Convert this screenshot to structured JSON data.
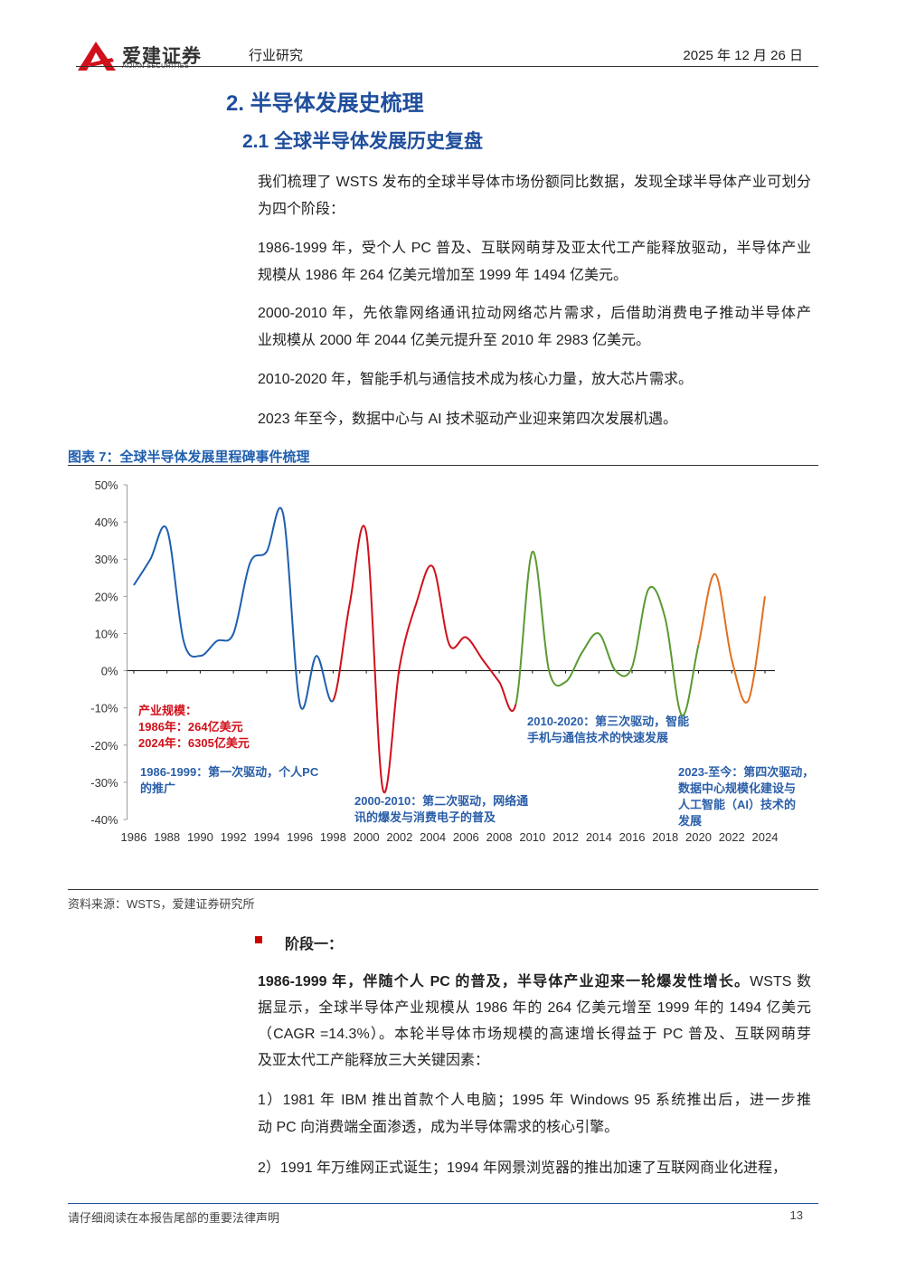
{
  "header": {
    "logo_cn": "爱建证券",
    "logo_en": "AIJIAN SECURITIES",
    "section": "行业研究",
    "date": "2025 年 12 月 26 日"
  },
  "heading": "2.  半导体发展史梳理",
  "subheading": "2.1  全球半导体发展历史复盘",
  "paragraphs": [
    [
      "我们梳理了 WSTS 发布的全球半导体市场份额同比数据，发现全球半导体产业可划分",
      "为四个阶段："
    ],
    [
      "1986-1999 年，受个人 PC 普及、互联网萌芽及亚太代工产能释放驱动，半导体产业",
      "规模从 1986 年 264 亿美元增加至 1999 年 1494 亿美元。"
    ],
    [
      "2000-2010 年，先依靠网络通讯拉动网络芯片需求，后借助消费电子推动半导体产",
      "业规模从 2000 年 2044 亿美元提升至 2010 年 2983 亿美元。"
    ],
    [
      "2010-2020 年，智能手机与通信技术成为核心力量，放大芯片需求。"
    ],
    [
      "2023 年至今，数据中心与 AI 技术驱动产业迎来第四次发展机遇。"
    ]
  ],
  "figure": {
    "caption": "图表 7：全球半导体发展里程碑事件梳理",
    "source": "资料来源：WSTS，爱建证券研究所"
  },
  "chart_data": {
    "type": "line",
    "x": [
      1986,
      1987,
      1988,
      1989,
      1990,
      1991,
      1992,
      1993,
      1994,
      1995,
      1996,
      1997,
      1998,
      1999,
      2000,
      2001,
      2002,
      2003,
      2004,
      2005,
      2006,
      2007,
      2008,
      2009,
      2010,
      2011,
      2012,
      2013,
      2014,
      2015,
      2016,
      2017,
      2018,
      2019,
      2020,
      2021,
      2022,
      2023,
      2024
    ],
    "series": [
      {
        "color": "#1f5fae",
        "values": [
          23,
          30,
          38,
          8,
          4,
          8,
          10,
          29,
          32,
          42,
          -9,
          4,
          -8,
          null,
          null,
          null,
          null,
          null,
          null,
          null,
          null,
          null,
          null,
          null,
          null,
          null,
          null,
          null,
          null,
          null,
          null,
          null,
          null,
          null,
          null,
          null,
          null,
          null,
          null
        ]
      },
      {
        "color": "#d0101a",
        "values": [
          null,
          null,
          null,
          null,
          null,
          null,
          null,
          null,
          null,
          null,
          null,
          null,
          null,
          18,
          37,
          -32,
          1,
          18,
          28,
          7,
          9,
          3,
          -3,
          -9,
          null,
          null,
          null,
          null,
          null,
          null,
          null,
          null,
          null,
          null,
          null,
          null,
          null,
          null,
          null
        ]
      },
      {
        "color": "#5a9a32",
        "values": [
          null,
          null,
          null,
          null,
          null,
          null,
          null,
          null,
          null,
          null,
          null,
          null,
          null,
          null,
          null,
          null,
          null,
          null,
          null,
          null,
          null,
          null,
          null,
          null,
          32,
          0,
          -3,
          5,
          10,
          0,
          1,
          22,
          14,
          -12,
          7,
          null,
          null,
          null,
          null
        ]
      },
      {
        "color": "#e07020",
        "values": [
          null,
          null,
          null,
          null,
          null,
          null,
          null,
          null,
          null,
          null,
          null,
          null,
          null,
          null,
          null,
          null,
          null,
          null,
          null,
          null,
          null,
          null,
          null,
          null,
          null,
          null,
          null,
          null,
          null,
          null,
          null,
          null,
          null,
          null,
          null,
          26,
          3,
          -8,
          20
        ]
      }
    ],
    "xlim": [
      1985.6,
      2024.6
    ],
    "xticks": [
      1986,
      1988,
      1990,
      1992,
      1994,
      1996,
      1998,
      2000,
      2002,
      2004,
      2006,
      2008,
      2010,
      2012,
      2014,
      2016,
      2018,
      2020,
      2022,
      2024
    ],
    "ylim": [
      -40,
      50
    ],
    "yticks": [
      {
        "value": -40,
        "label": "-40%"
      },
      {
        "value": -30,
        "label": "-30%"
      },
      {
        "value": -20,
        "label": "-20%"
      },
      {
        "value": -10,
        "label": "-10%"
      },
      {
        "value": 0,
        "label": "0%"
      },
      {
        "value": 10,
        "label": "10%"
      },
      {
        "value": 20,
        "label": "20%"
      },
      {
        "value": 30,
        "label": "30%"
      },
      {
        "value": 40,
        "label": "40%"
      },
      {
        "value": 50,
        "label": "50%"
      }
    ],
    "annotations": [
      {
        "color": "#d0101a",
        "lines": [
          "产业规模：",
          "1986年：264亿美元",
          "2024年：6305亿美元"
        ]
      },
      {
        "color": "#2a5ea8",
        "lines": [
          "1986-1999：第一次驱动，个人PC",
          "的推广"
        ]
      },
      {
        "color": "#2a5ea8",
        "lines": [
          "2000-2010：第二次驱动，网络通",
          "讯的爆发与消费电子的普及"
        ]
      },
      {
        "color": "#2a5ea8",
        "lines": [
          "2010-2020：第三次驱动，智能",
          "手机与通信技术的快速发展"
        ]
      },
      {
        "color": "#2a5ea8",
        "lines": [
          "2023-至今：第四次驱动，",
          "数据中心规模化建设与",
          "人工智能（AI）技术的",
          "发展"
        ]
      }
    ]
  },
  "stage": {
    "label": "阶段一：",
    "bold": "1986-1999 年，伴随个人 PC 的普及，半导体产业迎来一轮爆发性增长。",
    "lines": [
      "WSTS 数",
      "据显示，全球半导体产业规模从 1986 年的 264 亿美元增至 1999 年的 1494 亿美元",
      "（CAGR =14.3%）。本轮半导体市场规模的高速增长得益于 PC 普及、互联网萌芽",
      "及亚太代工产能释放三大关键因素："
    ],
    "items": [
      [
        "1）1981 年 IBM 推出首款个人电脑；1995 年 Windows 95 系统推出后，进一步推",
        "动 PC 向消费端全面渗透，成为半导体需求的核心引擎。"
      ],
      [
        "2）1991 年万维网正式诞生；1994 年网景浏览器的推出加速了互联网商业化进程，"
      ]
    ]
  },
  "footer": {
    "note": "请仔细阅读在本报告尾部的重要法律声明",
    "page": "13"
  }
}
